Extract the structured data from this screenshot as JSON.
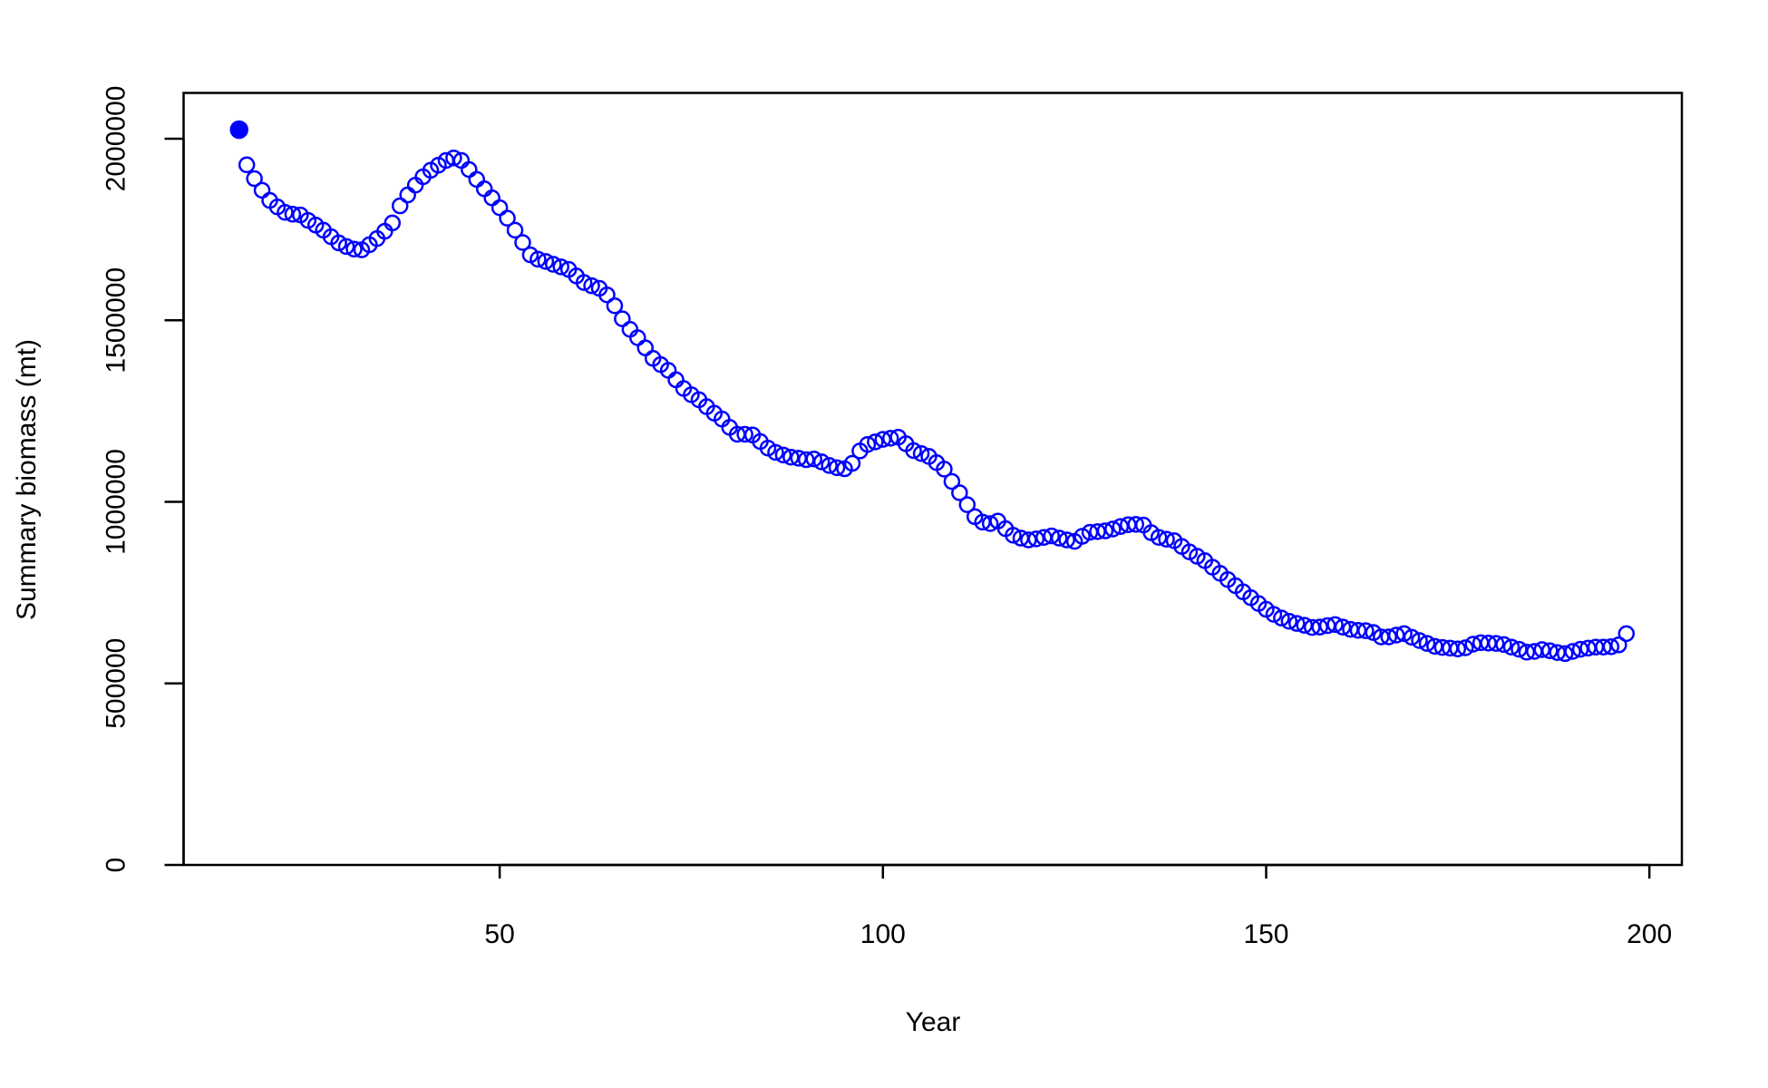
{
  "chart_data": {
    "type": "scatter",
    "xlabel": "Year",
    "ylabel": "Summary biomass (mt)",
    "color": "#0000ff",
    "marker": "open-circle",
    "first_point_filled": true,
    "xlim": [
      8.76,
      204.24
    ],
    "ylim": [
      0,
      2126000
    ],
    "xticks": [
      50,
      100,
      150,
      200
    ],
    "yticks": [
      0,
      500000,
      1000000,
      1500000,
      2000000
    ],
    "x": [
      16,
      17,
      18,
      19,
      20,
      21,
      22,
      23,
      24,
      25,
      26,
      27,
      28,
      29,
      30,
      31,
      32,
      33,
      34,
      35,
      36,
      37,
      38,
      39,
      40,
      41,
      42,
      43,
      44,
      45,
      46,
      47,
      48,
      49,
      50,
      51,
      52,
      53,
      54,
      55,
      56,
      57,
      58,
      59,
      60,
      61,
      62,
      63,
      64,
      65,
      66,
      67,
      68,
      69,
      70,
      71,
      72,
      73,
      74,
      75,
      76,
      77,
      78,
      79,
      80,
      81,
      82,
      83,
      84,
      85,
      86,
      87,
      88,
      89,
      90,
      91,
      92,
      93,
      94,
      95,
      96,
      97,
      98,
      99,
      100,
      101,
      102,
      103,
      104,
      105,
      106,
      107,
      108,
      109,
      110,
      111,
      112,
      113,
      114,
      115,
      116,
      117,
      118,
      119,
      120,
      121,
      122,
      123,
      124,
      125,
      126,
      127,
      128,
      129,
      130,
      131,
      132,
      133,
      134,
      135,
      136,
      137,
      138,
      139,
      140,
      141,
      142,
      143,
      144,
      145,
      146,
      147,
      148,
      149,
      150,
      151,
      152,
      153,
      154,
      155,
      156,
      157,
      158,
      159,
      160,
      161,
      162,
      163,
      164,
      165,
      166,
      167,
      168,
      169,
      170,
      171,
      172,
      173,
      174,
      175,
      176,
      177,
      178,
      179,
      180,
      181,
      182,
      183,
      184,
      185,
      186,
      187,
      188,
      189,
      190,
      191,
      192,
      193,
      194,
      195,
      196,
      197
    ],
    "values": [
      2025000,
      1928000,
      1890000,
      1858000,
      1830000,
      1812000,
      1797000,
      1792000,
      1790000,
      1775000,
      1762000,
      1748000,
      1730000,
      1713000,
      1703000,
      1696000,
      1694000,
      1708000,
      1725000,
      1745000,
      1768000,
      1815000,
      1845000,
      1872000,
      1895000,
      1913000,
      1927000,
      1940000,
      1947000,
      1940000,
      1915000,
      1888000,
      1862000,
      1837000,
      1810000,
      1781000,
      1748000,
      1714000,
      1680000,
      1668000,
      1662000,
      1654000,
      1647000,
      1640000,
      1622000,
      1604000,
      1595000,
      1588000,
      1570000,
      1540000,
      1504000,
      1475000,
      1452000,
      1424000,
      1395000,
      1378000,
      1362000,
      1336000,
      1312000,
      1295000,
      1281000,
      1262000,
      1244000,
      1228000,
      1205000,
      1186000,
      1186000,
      1184000,
      1166000,
      1148000,
      1136000,
      1129000,
      1123000,
      1120000,
      1116000,
      1118000,
      1110000,
      1100000,
      1094000,
      1091000,
      1106000,
      1140000,
      1158000,
      1165000,
      1172000,
      1175000,
      1178000,
      1160000,
      1141000,
      1133000,
      1125000,
      1108000,
      1090000,
      1056000,
      1025000,
      992000,
      959000,
      944000,
      940000,
      947000,
      926000,
      908000,
      900000,
      895000,
      898000,
      902000,
      906000,
      900000,
      895000,
      891000,
      905000,
      916000,
      918000,
      920000,
      925000,
      932000,
      937000,
      938000,
      936000,
      915000,
      902000,
      897000,
      893000,
      877000,
      862000,
      850000,
      838000,
      820000,
      803000,
      786000,
      769000,
      752000,
      736000,
      720000,
      704000,
      690000,
      680000,
      671000,
      665000,
      660000,
      654000,
      655000,
      659000,
      662000,
      655000,
      649000,
      646000,
      645000,
      640000,
      628000,
      628000,
      633000,
      637000,
      627000,
      618000,
      610000,
      602000,
      599000,
      597000,
      595000,
      598000,
      608000,
      612000,
      611000,
      610000,
      607000,
      600000,
      594000,
      586000,
      588000,
      593000,
      590000,
      585000,
      582000,
      588000,
      594000,
      597000,
      600000,
      600000,
      601000,
      606000,
      637000
    ]
  }
}
